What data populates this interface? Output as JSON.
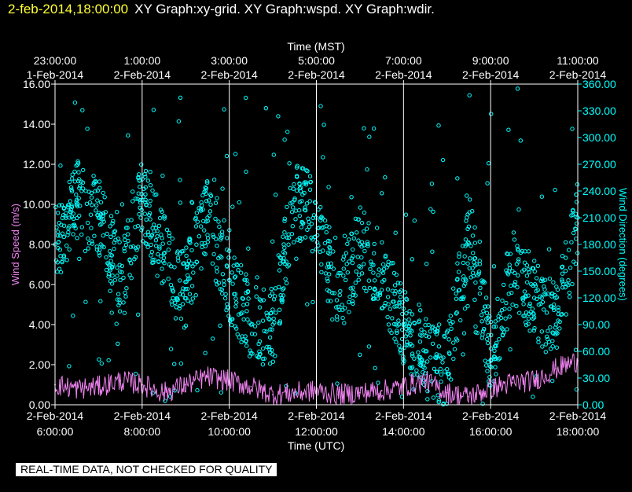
{
  "header": {
    "timestamp": "2-feb-2014,18:00:00",
    "graph_titles": "XY Graph:xy-grid.  XY Graph:wspd.  XY Graph:wdir."
  },
  "notice": "REAL-TIME DATA, NOT CHECKED FOR QUALITY",
  "colors": {
    "speed": "#ee82ee",
    "direction": "#00ffff",
    "grid": "#ffffff",
    "header_timestamp": "#ffff33"
  },
  "chart_data": {
    "type": "scatter",
    "top_axis": {
      "label": "Time (MST)",
      "ticks": [
        {
          "hour": 6,
          "time": "23:00:00",
          "date": "1-Feb-2014"
        },
        {
          "hour": 8,
          "time": "1:00:00",
          "date": "2-Feb-2014"
        },
        {
          "hour": 10,
          "time": "3:00:00",
          "date": "2-Feb-2014"
        },
        {
          "hour": 12,
          "time": "5:00:00",
          "date": "2-Feb-2014"
        },
        {
          "hour": 14,
          "time": "7:00:00",
          "date": "2-Feb-2014"
        },
        {
          "hour": 16,
          "time": "9:00:00",
          "date": "2-Feb-2014"
        },
        {
          "hour": 18,
          "time": "11:00:00",
          "date": "2-Feb-2014"
        }
      ]
    },
    "bottom_axis": {
      "label": "Time (UTC)",
      "range_hours": [
        6,
        18
      ],
      "ticks": [
        {
          "hour": 6,
          "date": "2-Feb-2014",
          "time": "6:00:00"
        },
        {
          "hour": 8,
          "date": "2-Feb-2014",
          "time": "8:00:00"
        },
        {
          "hour": 10,
          "date": "2-Feb-2014",
          "time": "10:00:00"
        },
        {
          "hour": 12,
          "date": "2-Feb-2014",
          "time": "12:00:00"
        },
        {
          "hour": 14,
          "date": "2-Feb-2014",
          "time": "14:00:00"
        },
        {
          "hour": 16,
          "date": "2-Feb-2014",
          "time": "16:00:00"
        },
        {
          "hour": 18,
          "date": "2-Feb-2014",
          "time": "18:00:00"
        }
      ]
    },
    "left_axis": {
      "label": "Wind Speed (m/s)",
      "ylim": [
        0,
        16
      ],
      "ticks": [
        "0.00",
        "2.00",
        "4.00",
        "6.00",
        "8.00",
        "10.00",
        "12.00",
        "14.00",
        "16.00"
      ]
    },
    "right_axis": {
      "label": "Wind Direction (degrees)",
      "ylim": [
        0,
        360
      ],
      "ticks": [
        "0.00",
        "30.00",
        "60.00",
        "90.00",
        "120.00",
        "150.00",
        "180.00",
        "210.00",
        "240.00",
        "270.00",
        "300.00",
        "330.00",
        "360.00"
      ]
    },
    "grid": "vertical",
    "series": [
      {
        "name": "wspd",
        "kind": "line",
        "axis": "left",
        "x_hours": [
          6.0,
          6.5,
          7.0,
          7.5,
          8.0,
          8.5,
          9.0,
          9.5,
          10.0,
          10.5,
          11.0,
          11.5,
          12.0,
          12.5,
          13.0,
          13.5,
          14.0,
          14.5,
          15.0,
          15.5,
          16.0,
          16.5,
          17.0,
          17.5,
          18.0
        ],
        "values": [
          1.0,
          0.8,
          0.9,
          1.2,
          1.0,
          0.6,
          1.0,
          1.4,
          1.2,
          0.9,
          0.5,
          0.6,
          0.7,
          0.5,
          0.6,
          0.7,
          0.9,
          1.2,
          0.6,
          0.4,
          0.8,
          1.1,
          1.2,
          1.8,
          2.2
        ]
      },
      {
        "name": "wdir",
        "kind": "scatter",
        "axis": "right",
        "x_hours": [
          6.0,
          6.5,
          7.0,
          7.5,
          8.0,
          8.5,
          9.0,
          9.5,
          10.0,
          10.5,
          11.0,
          11.5,
          12.0,
          12.5,
          13.0,
          13.5,
          14.0,
          14.5,
          15.0,
          15.5,
          16.0,
          16.5,
          17.0,
          17.5,
          18.0
        ],
        "values": [
          180,
          230,
          210,
          140,
          230,
          170,
          130,
          210,
          140,
          90,
          90,
          230,
          210,
          110,
          180,
          150,
          90,
          60,
          40,
          200,
          50,
          150,
          120,
          90,
          210
        ]
      }
    ]
  }
}
